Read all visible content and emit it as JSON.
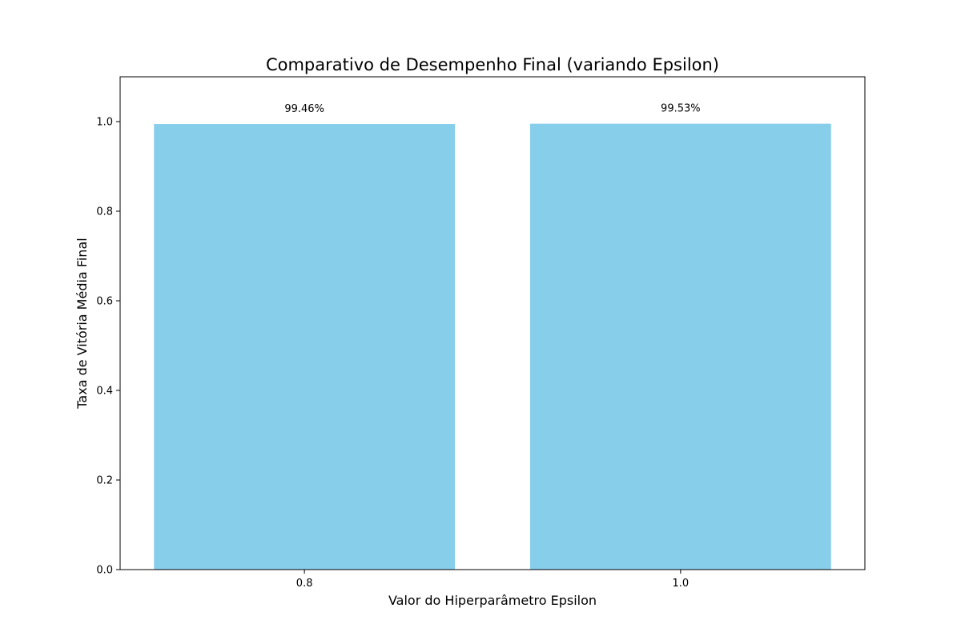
{
  "chart_data": {
    "type": "bar",
    "title": "Comparativo de Desempenho Final (variando Epsilon)",
    "xlabel": "Valor do Hiperparâmetro Epsilon",
    "ylabel": "Taxa de Vitória Média Final",
    "categories": [
      "0.8",
      "1.0"
    ],
    "values": [
      0.9946,
      0.9953
    ],
    "data_labels": [
      "99.46%",
      "99.53%"
    ],
    "ylim": [
      0,
      1.1
    ],
    "yticks": [
      0.0,
      0.2,
      0.4,
      0.6,
      0.8,
      1.0
    ],
    "ytick_labels": [
      "0.0",
      "0.2",
      "0.4",
      "0.6",
      "0.8",
      "1.0"
    ],
    "bar_color": "#87CEEB",
    "grid": false,
    "legend": false
  }
}
